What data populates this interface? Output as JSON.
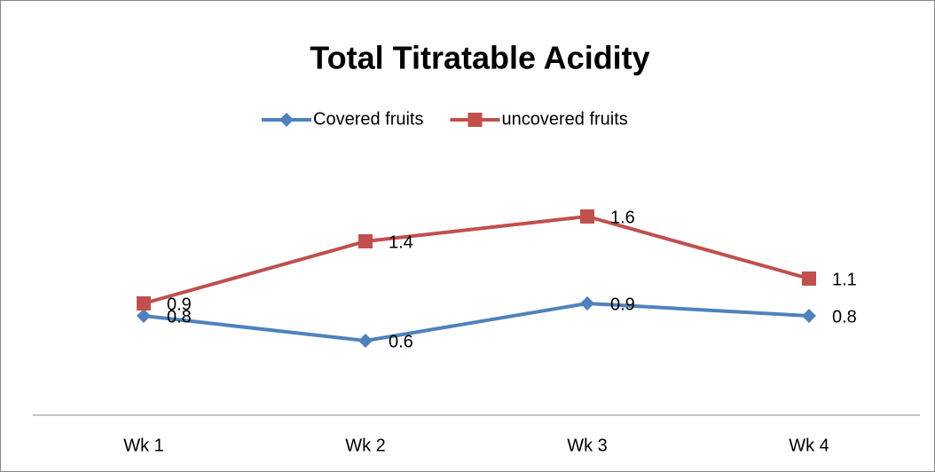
{
  "chart_data": {
    "type": "line",
    "title": "Total Titratable Acidity",
    "categories": [
      "Wk 1",
      "Wk 2",
      "Wk 3",
      "Wk 4"
    ],
    "series": [
      {
        "name": "Covered fruits",
        "color": "#4f81bd",
        "marker": "diamond",
        "values": [
          0.8,
          0.6,
          0.9,
          0.8
        ]
      },
      {
        "name": "uncovered fruits",
        "color": "#c0504d",
        "marker": "square",
        "values": [
          0.9,
          1.4,
          1.6,
          1.1
        ]
      }
    ],
    "ylim": [
      0,
      2
    ],
    "legend": "top",
    "data_labels": true
  }
}
